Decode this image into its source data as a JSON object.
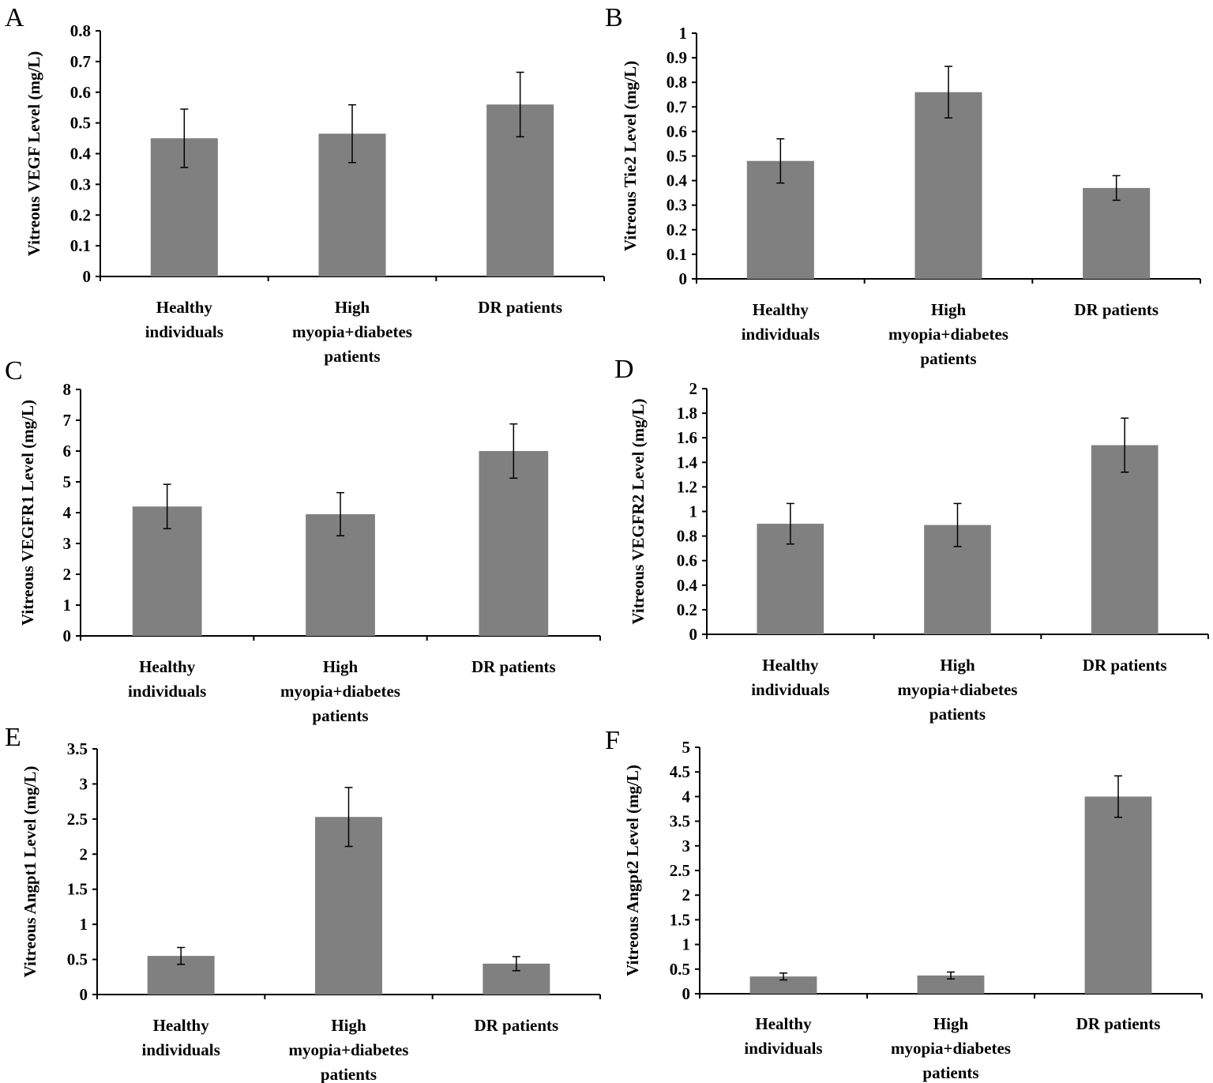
{
  "colors": {
    "bar": "#808080",
    "axis": "#000000",
    "error": "#000000",
    "background": "#ffffff"
  },
  "chart_data": [
    {
      "panel": "A",
      "type": "bar",
      "categories": [
        [
          "Healthy",
          "individuals"
        ],
        [
          "High",
          "myopia+diabetes",
          "patients"
        ],
        [
          "DR patients"
        ]
      ],
      "values": [
        0.45,
        0.465,
        0.56
      ],
      "errors": [
        0.095,
        0.094,
        0.105
      ],
      "ylabel": "Vitreous VEGF Level (mg/L)",
      "ylim": [
        0,
        0.8
      ],
      "yticks": [
        "0",
        "0.1",
        "0.2",
        "0.3",
        "0.4",
        "0.5",
        "0.6",
        "0.7",
        "0.8"
      ],
      "grid": false,
      "legend": "none"
    },
    {
      "panel": "B",
      "type": "bar",
      "categories": [
        [
          "Healthy",
          "individuals"
        ],
        [
          "High",
          "myopia+diabetes",
          "patients"
        ],
        [
          "DR patients"
        ]
      ],
      "values": [
        0.48,
        0.76,
        0.37
      ],
      "errors": [
        0.09,
        0.105,
        0.05
      ],
      "ylabel": "Vitreous Tie2 Level (mg/L)",
      "ylim": [
        0,
        1
      ],
      "yticks": [
        "0",
        "0.1",
        "0.2",
        "0.3",
        "0.4",
        "0.5",
        "0.6",
        "0.7",
        "0.8",
        "0.9",
        "1"
      ],
      "grid": false,
      "legend": "none"
    },
    {
      "panel": "C",
      "type": "bar",
      "categories": [
        [
          "Healthy",
          "individuals"
        ],
        [
          "High",
          "myopia+diabetes",
          "patients"
        ],
        [
          "DR patients"
        ]
      ],
      "values": [
        4.2,
        3.95,
        6.0
      ],
      "errors": [
        0.72,
        0.7,
        0.88
      ],
      "ylabel": "Vitreous VEGFR1 Level (mg/L)",
      "ylim": [
        0,
        8
      ],
      "yticks": [
        "0",
        "1",
        "2",
        "3",
        "4",
        "5",
        "6",
        "7",
        "8"
      ],
      "grid": false,
      "legend": "none"
    },
    {
      "panel": "D",
      "type": "bar",
      "categories": [
        [
          "Healthy",
          "individuals"
        ],
        [
          "High",
          "myopia+diabetes",
          "patients"
        ],
        [
          "DR patients"
        ]
      ],
      "values": [
        0.9,
        0.89,
        1.54
      ],
      "errors": [
        0.165,
        0.175,
        0.22
      ],
      "ylabel": "Vitreous VEGFR2 Level (mg/L)",
      "ylim": [
        0,
        2
      ],
      "yticks": [
        "0",
        "0.2",
        "0.4",
        "0.6",
        "0.8",
        "1",
        "1.2",
        "1.4",
        "1.6",
        "1.8",
        "2"
      ],
      "grid": false,
      "legend": "none"
    },
    {
      "panel": "E",
      "type": "bar",
      "categories": [
        [
          "Healthy",
          "individuals"
        ],
        [
          "High",
          "myopia+diabetes",
          "patients"
        ],
        [
          "DR patients"
        ]
      ],
      "values": [
        0.55,
        2.53,
        0.44
      ],
      "errors": [
        0.12,
        0.42,
        0.1
      ],
      "ylabel": "Vitreous Angpt1 Level (mg/L)",
      "ylim": [
        0,
        3.5
      ],
      "yticks": [
        "0",
        "0.5",
        "1",
        "1.5",
        "2",
        "2.5",
        "3",
        "3.5"
      ],
      "grid": false,
      "legend": "none"
    },
    {
      "panel": "F",
      "type": "bar",
      "categories": [
        [
          "Healthy",
          "individuals"
        ],
        [
          "High",
          "myopia+diabetes",
          "patients"
        ],
        [
          "DR patients"
        ]
      ],
      "values": [
        0.35,
        0.37,
        4.0
      ],
      "errors": [
        0.07,
        0.07,
        0.42
      ],
      "ylabel": "Vitreous Angpt2 Level (mg/L)",
      "ylim": [
        0,
        5
      ],
      "yticks": [
        "0",
        "0.5",
        "1",
        "1.5",
        "2",
        "2.5",
        "3",
        "3.5",
        "4",
        "4.5",
        "5"
      ],
      "grid": false,
      "legend": "none"
    }
  ]
}
